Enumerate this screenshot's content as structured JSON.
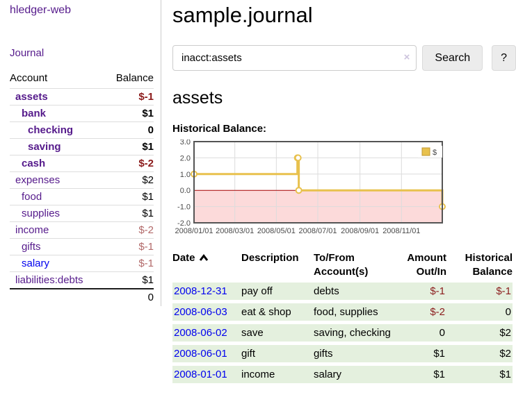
{
  "sidebar": {
    "app_title": "hledger-web",
    "nav": {
      "journal_label": "Journal"
    },
    "accounts_table": {
      "account_header": "Account",
      "balance_header": "Balance",
      "rows": [
        {
          "name": "assets",
          "level": 1,
          "bold": true,
          "balance": "$-1",
          "negative": true
        },
        {
          "name": "bank",
          "level": 2,
          "bold": true,
          "balance": "$1",
          "negative": false
        },
        {
          "name": "checking",
          "level": 3,
          "bold": true,
          "balance": "0",
          "negative": false
        },
        {
          "name": "saving",
          "level": 3,
          "bold": true,
          "balance": "$1",
          "negative": false
        },
        {
          "name": "cash",
          "level": 2,
          "bold": true,
          "balance": "$-2",
          "negative": true
        },
        {
          "name": "expenses",
          "level": 1,
          "bold": false,
          "balance": "$2",
          "negative": false
        },
        {
          "name": "food",
          "level": 2,
          "bold": false,
          "balance": "$1",
          "negative": false
        },
        {
          "name": "supplies",
          "level": 2,
          "bold": false,
          "balance": "$1",
          "negative": false
        },
        {
          "name": "income",
          "level": 1,
          "bold": false,
          "balance": "$-2",
          "negative": true
        },
        {
          "name": "gifts",
          "level": 2,
          "bold": false,
          "balance": "$-1",
          "negative": true
        },
        {
          "name": "salary",
          "level": 2,
          "bold": false,
          "balance": "$-1",
          "negative": true,
          "unvisited": true
        },
        {
          "name": "liabilities:debts",
          "level": 1,
          "bold": false,
          "balance": "$1",
          "negative": false
        }
      ],
      "total": "0"
    }
  },
  "main": {
    "title": "sample.journal",
    "search": {
      "value": "inacct:assets",
      "clear_icon": "×",
      "search_button_label": "Search",
      "help_button_label": "?"
    },
    "account_heading": "assets",
    "chart_title": "Historical Balance:",
    "register_table": {
      "headers": [
        "Date",
        "Description",
        "To/From Account(s)",
        "Amount Out/In",
        "Historical Balance"
      ],
      "rows": [
        {
          "date": "2008-12-31",
          "description": "pay off",
          "accounts": "debts",
          "amount": "$-1",
          "amount_negative": true,
          "balance": "$-1",
          "balance_negative": true
        },
        {
          "date": "2008-06-03",
          "description": "eat & shop",
          "accounts": "food, supplies",
          "amount": "$-2",
          "amount_negative": true,
          "balance": "0",
          "balance_negative": false
        },
        {
          "date": "2008-06-02",
          "description": "save",
          "accounts": "saving, checking",
          "amount": "0",
          "amount_negative": false,
          "balance": "$2",
          "balance_negative": false
        },
        {
          "date": "2008-06-01",
          "description": "gift",
          "accounts": "gifts",
          "amount": "$1",
          "amount_negative": false,
          "balance": "$2",
          "balance_negative": false
        },
        {
          "date": "2008-01-01",
          "description": "income",
          "accounts": "salary",
          "amount": "$1",
          "amount_negative": false,
          "balance": "$1",
          "balance_negative": false
        }
      ]
    }
  },
  "chart_data": {
    "type": "line",
    "step": true,
    "title": "Historical Balance:",
    "series": [
      {
        "name": "$",
        "color": "#e8c14d",
        "points": [
          [
            "2008-01-01",
            1
          ],
          [
            "2008-06-01",
            2
          ],
          [
            "2008-06-02",
            2
          ],
          [
            "2008-06-03",
            0
          ],
          [
            "2008-12-31",
            -1
          ]
        ]
      }
    ],
    "x_ticks": [
      "2008/01/01",
      "2008/03/01",
      "2008/05/01",
      "2008/07/01",
      "2008/09/01",
      "2008/11/01"
    ],
    "y_ticks": [
      "3.0",
      "2.0",
      "1.0",
      "0.0",
      "-1.0",
      "-2.0"
    ],
    "xlim": [
      "2008-01-01",
      "2008-12-31"
    ],
    "ylim": [
      -2,
      3
    ],
    "grid": true,
    "legend_position": "top-right",
    "colors": {
      "grid": "#dcdcdc",
      "border": "#545454",
      "zero_line": "#a40000",
      "negative_region": "#fcdada",
      "tick_text": "#4a4a4a",
      "legend_border": "#bf9733"
    }
  }
}
